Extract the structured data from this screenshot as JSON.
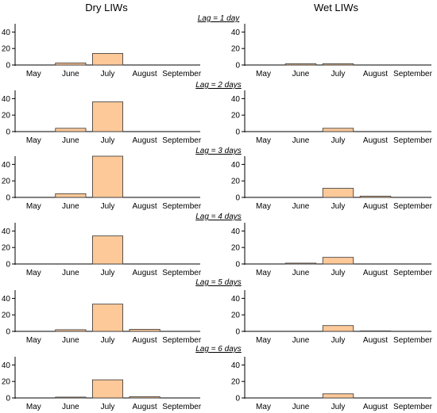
{
  "headers": {
    "left": "Dry LIWs",
    "right": "Wet LIWs"
  },
  "lag_labels": [
    "Lag = 1 day",
    "Lag = 2 days",
    "Lag = 3 days",
    "Lag = 4 days",
    "Lag = 5 days",
    "Lag = 6 days"
  ],
  "colors": {
    "bar_fill": "#fdc999",
    "bar_stroke": "#333333"
  },
  "chart_data": [
    {
      "type": "bar",
      "panel": "Dry LIWs",
      "lag": "Lag = 1 day",
      "categories": [
        "May",
        "June",
        "July",
        "August",
        "September"
      ],
      "values": [
        0,
        2.5,
        14,
        0,
        0
      ],
      "yticks": [
        0,
        20,
        40
      ],
      "ylim": [
        0,
        50
      ]
    },
    {
      "type": "bar",
      "panel": "Wet LIWs",
      "lag": "Lag = 1 day",
      "categories": [
        "May",
        "June",
        "July",
        "August",
        "September"
      ],
      "values": [
        0,
        1.5,
        1.5,
        0,
        0
      ],
      "yticks": [
        0,
        20,
        40
      ],
      "ylim": [
        0,
        50
      ]
    },
    {
      "type": "bar",
      "panel": "Dry LIWs",
      "lag": "Lag = 2 days",
      "categories": [
        "May",
        "June",
        "July",
        "August",
        "September"
      ],
      "values": [
        0,
        4,
        36,
        0,
        0
      ],
      "yticks": [
        0,
        20,
        40
      ],
      "ylim": [
        0,
        50
      ]
    },
    {
      "type": "bar",
      "panel": "Wet LIWs",
      "lag": "Lag = 2 days",
      "categories": [
        "May",
        "June",
        "July",
        "August",
        "September"
      ],
      "values": [
        0,
        0,
        4,
        0,
        0
      ],
      "yticks": [
        0,
        20,
        40
      ],
      "ylim": [
        0,
        50
      ]
    },
    {
      "type": "bar",
      "panel": "Dry LIWs",
      "lag": "Lag = 3 days",
      "categories": [
        "May",
        "June",
        "July",
        "August",
        "September"
      ],
      "values": [
        0,
        4.5,
        50,
        0,
        0
      ],
      "yticks": [
        0,
        20,
        40
      ],
      "ylim": [
        0,
        50
      ]
    },
    {
      "type": "bar",
      "panel": "Wet LIWs",
      "lag": "Lag = 3 days",
      "categories": [
        "May",
        "June",
        "July",
        "August",
        "September"
      ],
      "values": [
        0,
        0,
        11,
        1.5,
        0
      ],
      "yticks": [
        0,
        20,
        40
      ],
      "ylim": [
        0,
        50
      ]
    },
    {
      "type": "bar",
      "panel": "Dry LIWs",
      "lag": "Lag = 4 days",
      "categories": [
        "May",
        "June",
        "July",
        "August",
        "September"
      ],
      "values": [
        0,
        0,
        34,
        0,
        0
      ],
      "yticks": [
        0,
        20,
        40
      ],
      "ylim": [
        0,
        50
      ]
    },
    {
      "type": "bar",
      "panel": "Wet LIWs",
      "lag": "Lag = 4 days",
      "categories": [
        "May",
        "June",
        "July",
        "August",
        "September"
      ],
      "values": [
        0,
        1,
        8,
        0,
        0
      ],
      "yticks": [
        0,
        20,
        40
      ],
      "ylim": [
        0,
        50
      ]
    },
    {
      "type": "bar",
      "panel": "Dry LIWs",
      "lag": "Lag = 5 days",
      "categories": [
        "May",
        "June",
        "July",
        "August",
        "September"
      ],
      "values": [
        0,
        2,
        33,
        2.5,
        0
      ],
      "yticks": [
        0,
        20,
        40
      ],
      "ylim": [
        0,
        50
      ]
    },
    {
      "type": "bar",
      "panel": "Wet LIWs",
      "lag": "Lag = 5 days",
      "categories": [
        "May",
        "June",
        "July",
        "August",
        "September"
      ],
      "values": [
        0,
        0,
        7,
        0.5,
        0
      ],
      "yticks": [
        0,
        20,
        40
      ],
      "ylim": [
        0,
        50
      ]
    },
    {
      "type": "bar",
      "panel": "Dry LIWs",
      "lag": "Lag = 6 days",
      "categories": [
        "May",
        "June",
        "July",
        "August",
        "September"
      ],
      "values": [
        0,
        1,
        22,
        1.5,
        0
      ],
      "yticks": [
        0,
        20,
        40
      ],
      "ylim": [
        0,
        50
      ]
    },
    {
      "type": "bar",
      "panel": "Wet LIWs",
      "lag": "Lag = 6 days",
      "categories": [
        "May",
        "June",
        "July",
        "August",
        "September"
      ],
      "values": [
        0,
        0,
        5,
        0,
        0
      ],
      "yticks": [
        0,
        20,
        40
      ],
      "ylim": [
        0,
        50
      ]
    }
  ]
}
